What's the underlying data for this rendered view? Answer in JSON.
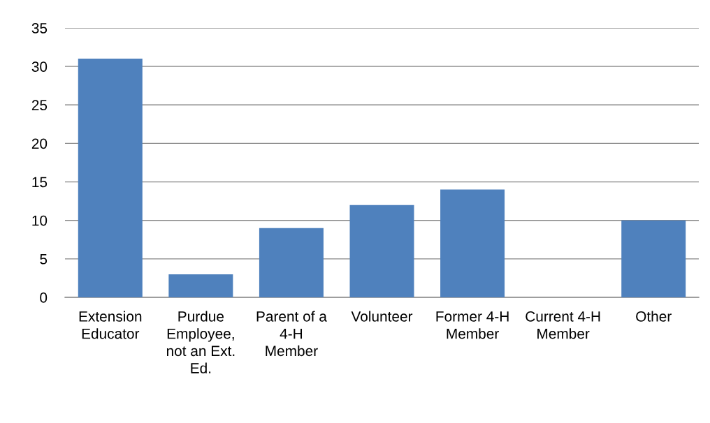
{
  "chart_data": {
    "type": "bar",
    "categories": [
      "Extension\nEducator",
      "Purdue\nEmployee,\nnot an Ext.\nEd.",
      "Parent of a\n4-H\nMember",
      "Volunteer",
      "Former 4-H\nMember",
      "Current 4-H\nMember",
      "Other"
    ],
    "values": [
      31,
      3,
      9,
      12,
      14,
      0,
      10
    ],
    "color": "#4f81bd",
    "ylim": [
      0,
      35
    ],
    "yticks": [
      0,
      5,
      10,
      15,
      20,
      25,
      30,
      35
    ],
    "grid": "y",
    "legend": false
  }
}
